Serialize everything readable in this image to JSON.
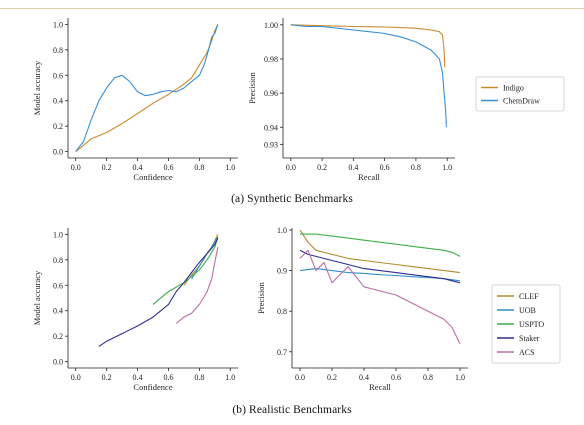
{
  "captions": {
    "top": "(a) Synthetic Benchmarks",
    "bottom": "(b) Realistic Benchmarks"
  },
  "colors": {
    "Indigo": "#c98a2e",
    "ChemDraw": "#3a8fd4",
    "CLEF": "#b08a2e",
    "UOB": "#2f8fc8",
    "USPTO": "#3fae49",
    "Staker": "#2f2f8f",
    "ACS": "#b86fa6",
    "axis": "#222222"
  },
  "chart_data": [
    {
      "id": "a-left",
      "type": "line",
      "xlabel": "Confidence",
      "ylabel": "Model accuracy",
      "xlim": [
        -0.05,
        1.05
      ],
      "ylim": [
        -0.05,
        1.05
      ],
      "xticks": [
        0.0,
        0.2,
        0.4,
        0.6,
        0.8,
        1.0
      ],
      "xtick_labels": [
        "0.0",
        "0.2",
        "0.4",
        "0.6",
        "0.8",
        "1.0"
      ],
      "yticks": [
        0.0,
        0.2,
        0.4,
        0.6,
        0.8,
        1.0
      ],
      "ytick_labels": [
        "0.0",
        "0.2",
        "0.4",
        "0.6",
        "0.8",
        "1.0"
      ],
      "series": [
        {
          "name": "Indigo",
          "x": [
            0.0,
            0.05,
            0.1,
            0.2,
            0.3,
            0.4,
            0.5,
            0.6,
            0.7,
            0.75,
            0.8,
            0.85,
            0.88,
            0.9,
            0.92
          ],
          "y": [
            0.0,
            0.05,
            0.1,
            0.15,
            0.22,
            0.3,
            0.38,
            0.45,
            0.53,
            0.58,
            0.68,
            0.78,
            0.87,
            0.95,
            1.0
          ]
        },
        {
          "name": "ChemDraw",
          "x": [
            0.0,
            0.05,
            0.1,
            0.15,
            0.2,
            0.25,
            0.3,
            0.35,
            0.4,
            0.45,
            0.5,
            0.55,
            0.6,
            0.65,
            0.7,
            0.75,
            0.8,
            0.83,
            0.86,
            0.88,
            0.9,
            0.92
          ],
          "y": [
            0.0,
            0.08,
            0.25,
            0.4,
            0.5,
            0.58,
            0.6,
            0.55,
            0.47,
            0.44,
            0.45,
            0.47,
            0.48,
            0.47,
            0.5,
            0.55,
            0.6,
            0.68,
            0.8,
            0.9,
            0.93,
            1.0
          ]
        }
      ]
    },
    {
      "id": "a-right",
      "type": "line",
      "xlabel": "Recall",
      "ylabel": "Precision",
      "xlim": [
        -0.05,
        1.05
      ],
      "ylim": [
        0.922,
        1.004
      ],
      "xticks": [
        0.0,
        0.2,
        0.4,
        0.6,
        0.8,
        1.0
      ],
      "xtick_labels": [
        "0.0",
        "0.2",
        "0.4",
        "0.6",
        "0.8",
        "1.0"
      ],
      "yticks": [
        0.93,
        0.94,
        0.96,
        0.98,
        1.0
      ],
      "ytick_labels": [
        "0.93",
        "0.94",
        "0.96",
        "0.98",
        "1.00"
      ],
      "legend": {
        "placement": "right",
        "entries": [
          "Indigo",
          "ChemDraw"
        ]
      },
      "series": [
        {
          "name": "Indigo",
          "x": [
            0.0,
            0.2,
            0.4,
            0.6,
            0.8,
            0.9,
            0.95,
            0.97,
            0.98,
            0.985
          ],
          "y": [
            1.0,
            0.9995,
            0.999,
            0.9987,
            0.998,
            0.997,
            0.996,
            0.994,
            0.985,
            0.975
          ]
        },
        {
          "name": "ChemDraw",
          "x": [
            0.0,
            0.1,
            0.2,
            0.3,
            0.4,
            0.5,
            0.6,
            0.7,
            0.8,
            0.9,
            0.95,
            0.97,
            0.98,
            0.99,
            0.995
          ],
          "y": [
            1.0,
            0.999,
            0.999,
            0.998,
            0.997,
            0.996,
            0.995,
            0.993,
            0.99,
            0.985,
            0.98,
            0.972,
            0.96,
            0.95,
            0.94
          ]
        }
      ]
    },
    {
      "id": "b-left",
      "type": "line",
      "xlabel": "Confidence",
      "ylabel": "Model accuracy",
      "xlim": [
        -0.05,
        1.05
      ],
      "ylim": [
        -0.05,
        1.05
      ],
      "xticks": [
        0.0,
        0.2,
        0.4,
        0.6,
        0.8,
        1.0
      ],
      "xtick_labels": [
        "0.0",
        "0.2",
        "0.4",
        "0.6",
        "0.8",
        "1.0"
      ],
      "yticks": [
        0.0,
        0.2,
        0.4,
        0.6,
        0.8,
        1.0
      ],
      "ytick_labels": [
        "0.0",
        "0.2",
        "0.4",
        "0.6",
        "0.8",
        "1.0"
      ],
      "series": [
        {
          "name": "CLEF",
          "x": [
            0.7,
            0.75,
            0.8,
            0.85,
            0.88,
            0.9,
            0.92
          ],
          "y": [
            0.6,
            0.68,
            0.75,
            0.85,
            0.9,
            0.95,
            1.0
          ]
        },
        {
          "name": "UOB",
          "x": [
            0.75,
            0.8,
            0.85,
            0.88,
            0.9,
            0.92
          ],
          "y": [
            0.65,
            0.75,
            0.85,
            0.9,
            0.94,
            0.98
          ]
        },
        {
          "name": "USPTO",
          "x": [
            0.5,
            0.6,
            0.7,
            0.8,
            0.85,
            0.9,
            0.92
          ],
          "y": [
            0.45,
            0.55,
            0.62,
            0.72,
            0.8,
            0.9,
            0.98
          ]
        },
        {
          "name": "Staker",
          "x": [
            0.15,
            0.2,
            0.3,
            0.4,
            0.5,
            0.6,
            0.65,
            0.7,
            0.75,
            0.8,
            0.85,
            0.9,
            0.92
          ],
          "y": [
            0.12,
            0.16,
            0.22,
            0.28,
            0.35,
            0.45,
            0.55,
            0.62,
            0.7,
            0.78,
            0.85,
            0.92,
            0.97
          ]
        },
        {
          "name": "ACS",
          "x": [
            0.65,
            0.7,
            0.75,
            0.8,
            0.85,
            0.88,
            0.9,
            0.92
          ],
          "y": [
            0.3,
            0.35,
            0.38,
            0.45,
            0.55,
            0.65,
            0.78,
            0.9
          ]
        }
      ]
    },
    {
      "id": "b-right",
      "type": "line",
      "xlabel": "Recall",
      "ylabel": "Precision",
      "xlim": [
        -0.05,
        1.05
      ],
      "ylim": [
        0.66,
        1.005
      ],
      "xticks": [
        0.0,
        0.2,
        0.4,
        0.6,
        0.8,
        1.0
      ],
      "xtick_labels": [
        "0.0",
        "0.2",
        "0.4",
        "0.6",
        "0.8",
        "1.0"
      ],
      "yticks": [
        0.7,
        0.8,
        0.9,
        1.0
      ],
      "ytick_labels": [
        "0.7",
        "0.8",
        "0.9",
        "1.0"
      ],
      "legend": {
        "placement": "right",
        "entries": [
          "CLEF",
          "UOB",
          "USPTO",
          "Staker",
          "ACS"
        ]
      },
      "series": [
        {
          "name": "CLEF",
          "x": [
            0.0,
            0.05,
            0.1,
            0.2,
            0.3,
            0.4,
            0.5,
            0.6,
            0.7,
            0.8,
            0.9,
            1.0
          ],
          "y": [
            1.0,
            0.97,
            0.95,
            0.94,
            0.93,
            0.925,
            0.92,
            0.915,
            0.91,
            0.905,
            0.9,
            0.895
          ]
        },
        {
          "name": "UOB",
          "x": [
            0.0,
            0.1,
            0.2,
            0.3,
            0.4,
            0.5,
            0.6,
            0.7,
            0.8,
            0.9,
            1.0
          ],
          "y": [
            0.9,
            0.905,
            0.9,
            0.895,
            0.893,
            0.89,
            0.888,
            0.885,
            0.883,
            0.88,
            0.875
          ]
        },
        {
          "name": "USPTO",
          "x": [
            0.0,
            0.1,
            0.2,
            0.3,
            0.4,
            0.5,
            0.6,
            0.7,
            0.8,
            0.9,
            0.95,
            1.0
          ],
          "y": [
            0.99,
            0.99,
            0.985,
            0.98,
            0.975,
            0.97,
            0.965,
            0.96,
            0.955,
            0.95,
            0.945,
            0.935
          ]
        },
        {
          "name": "Staker",
          "x": [
            0.0,
            0.05,
            0.1,
            0.2,
            0.3,
            0.4,
            0.5,
            0.6,
            0.7,
            0.8,
            0.9,
            1.0
          ],
          "y": [
            0.95,
            0.94,
            0.935,
            0.925,
            0.915,
            0.905,
            0.9,
            0.895,
            0.89,
            0.885,
            0.88,
            0.87
          ]
        },
        {
          "name": "ACS",
          "x": [
            0.0,
            0.05,
            0.1,
            0.15,
            0.2,
            0.3,
            0.4,
            0.5,
            0.6,
            0.7,
            0.8,
            0.9,
            0.95,
            1.0
          ],
          "y": [
            0.93,
            0.95,
            0.9,
            0.92,
            0.87,
            0.91,
            0.86,
            0.85,
            0.84,
            0.82,
            0.8,
            0.78,
            0.76,
            0.72
          ]
        }
      ]
    }
  ]
}
